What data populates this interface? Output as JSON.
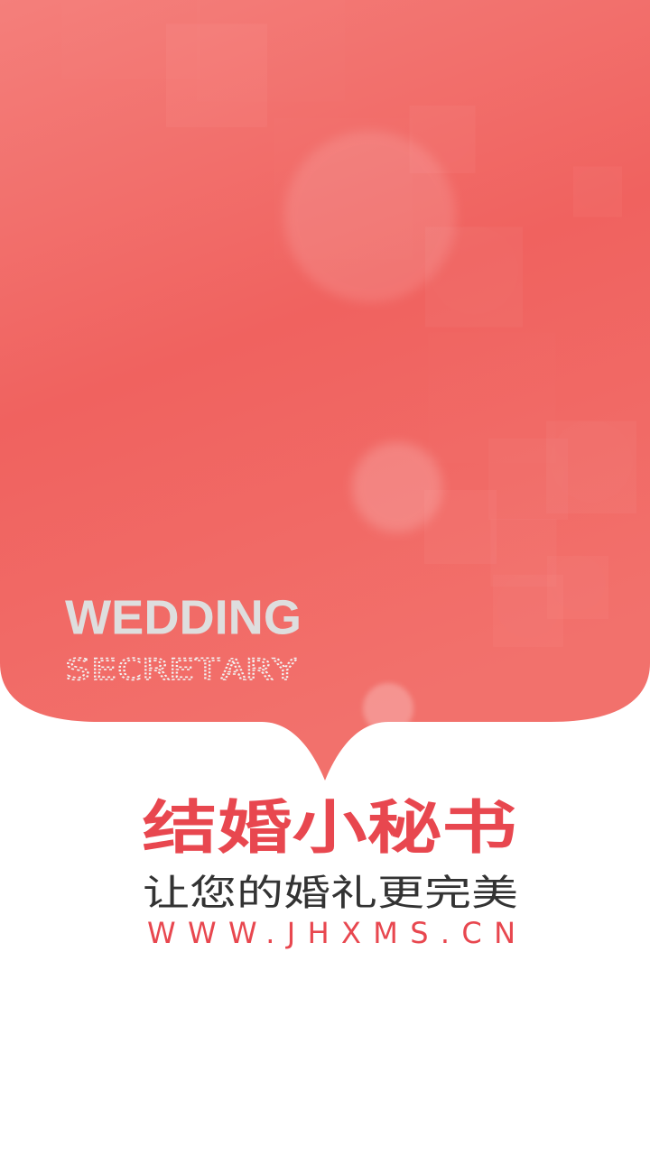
{
  "brand": {
    "en_title": "WEDDING",
    "en_subtitle": "SECRETARY",
    "title": "结婚小秘书",
    "slogan": "让您的婚礼更完美",
    "url": "WWW.JHXMS.CN"
  }
}
